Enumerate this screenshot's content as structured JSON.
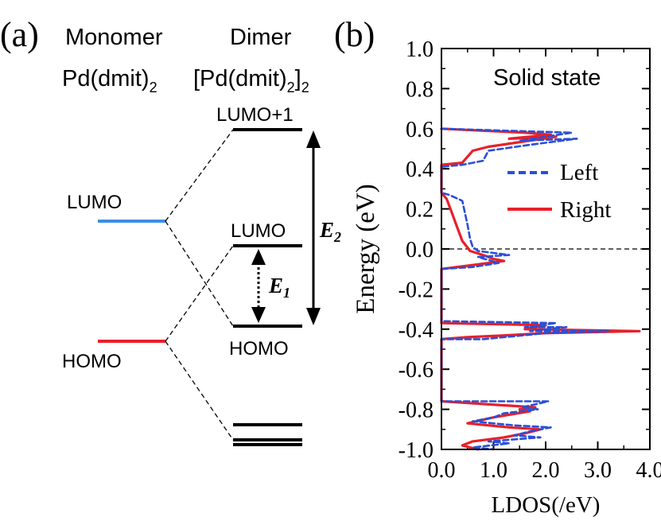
{
  "panel_a": {
    "label": "(a)",
    "monomer": {
      "title": "Monomer",
      "formula_base": "Pd(dmit)",
      "formula_sub": "2"
    },
    "dimer": {
      "title": "Dimer",
      "formula_open": "[Pd(dmit)",
      "formula_sub1": "2",
      "formula_close": "]",
      "formula_sub2": "2"
    },
    "levels": {
      "monomer_lumo": "LUMO",
      "monomer_homo": "HOMO",
      "dimer_lumo_plus_1": "LUMO+1",
      "dimer_lumo": "LUMO",
      "dimer_homo": "HOMO"
    },
    "gaps": {
      "e1_main": "E",
      "e1_sub": "1",
      "e2_main": "E",
      "e2_sub": "2"
    },
    "colors": {
      "lumo": "#3a8ee6",
      "homo": "#e8202a",
      "dimer": "#000000"
    }
  },
  "chart_data": {
    "panel_label": "(b)",
    "type": "line",
    "title": "Solid state",
    "xlabel": "LDOS(/eV)",
    "ylabel": "Energy (eV)",
    "xlim": [
      0.0,
      4.0
    ],
    "ylim": [
      -1.0,
      1.0
    ],
    "xticks": [
      "0.0",
      "1.0",
      "2.0",
      "3.0",
      "4.0"
    ],
    "yticks": [
      "-1.0",
      "-0.8",
      "-0.6",
      "-0.4",
      "-0.2",
      "0.0",
      "0.2",
      "0.4",
      "0.6",
      "0.8",
      "1.0"
    ],
    "fermi_level": 0.0,
    "legend": {
      "position": "upper-right"
    },
    "series": [
      {
        "name": "Left",
        "color": "#2a4fd6",
        "dash": "dashed",
        "points": [
          [
            0.0,
            0.6
          ],
          [
            2.5,
            0.58
          ],
          [
            1.5,
            0.54
          ],
          [
            2.6,
            0.55
          ],
          [
            1.7,
            0.52
          ],
          [
            0.9,
            0.49
          ],
          [
            0.8,
            0.44
          ],
          [
            0.4,
            0.42
          ],
          [
            0.0,
            0.41
          ],
          [
            0.0,
            0.28
          ],
          [
            0.15,
            0.27
          ],
          [
            0.4,
            0.24
          ],
          [
            0.45,
            0.18
          ],
          [
            0.5,
            0.12
          ],
          [
            0.55,
            0.05
          ],
          [
            0.6,
            0.01
          ],
          [
            0.7,
            -0.01
          ],
          [
            1.3,
            -0.03
          ],
          [
            0.7,
            -0.04
          ],
          [
            1.1,
            -0.07
          ],
          [
            0.6,
            -0.09
          ],
          [
            0.0,
            -0.1
          ],
          [
            0.0,
            -0.36
          ],
          [
            2.2,
            -0.37
          ],
          [
            1.6,
            -0.39
          ],
          [
            2.4,
            -0.39
          ],
          [
            1.7,
            -0.41
          ],
          [
            3.2,
            -0.41
          ],
          [
            2.0,
            -0.42
          ],
          [
            1.6,
            -0.43
          ],
          [
            0.8,
            -0.45
          ],
          [
            0.0,
            -0.45
          ],
          [
            0.0,
            -0.76
          ],
          [
            2.05,
            -0.76
          ],
          [
            1.55,
            -0.79
          ],
          [
            1.85,
            -0.8
          ],
          [
            1.2,
            -0.82
          ],
          [
            1.0,
            -0.84
          ],
          [
            0.6,
            -0.86
          ],
          [
            1.4,
            -0.88
          ],
          [
            2.1,
            -0.89
          ],
          [
            1.7,
            -0.91
          ],
          [
            1.4,
            -0.93
          ],
          [
            1.9,
            -0.94
          ],
          [
            0.9,
            -0.96
          ],
          [
            1.3,
            -0.97
          ],
          [
            0.6,
            -0.99
          ],
          [
            1.0,
            -1.0
          ]
        ]
      },
      {
        "name": "Right",
        "color": "#e8202a",
        "dash": "solid",
        "points": [
          [
            0.0,
            0.6
          ],
          [
            1.6,
            0.58
          ],
          [
            2.1,
            0.57
          ],
          [
            1.3,
            0.55
          ],
          [
            2.2,
            0.56
          ],
          [
            0.9,
            0.51
          ],
          [
            0.6,
            0.49
          ],
          [
            0.4,
            0.43
          ],
          [
            0.0,
            0.42
          ],
          [
            0.0,
            0.28
          ],
          [
            0.1,
            0.25
          ],
          [
            0.2,
            0.18
          ],
          [
            0.3,
            0.11
          ],
          [
            0.4,
            0.04
          ],
          [
            0.55,
            -0.01
          ],
          [
            0.8,
            -0.03
          ],
          [
            1.0,
            -0.05
          ],
          [
            1.2,
            -0.06
          ],
          [
            0.6,
            -0.08
          ],
          [
            0.0,
            -0.1
          ],
          [
            0.0,
            -0.37
          ],
          [
            2.0,
            -0.38
          ],
          [
            1.6,
            -0.4
          ],
          [
            3.8,
            -0.41
          ],
          [
            2.0,
            -0.42
          ],
          [
            1.3,
            -0.43
          ],
          [
            0.5,
            -0.44
          ],
          [
            0.0,
            -0.45
          ],
          [
            0.0,
            -0.76
          ],
          [
            1.8,
            -0.79
          ],
          [
            1.5,
            -0.8
          ],
          [
            1.7,
            -0.81
          ],
          [
            1.0,
            -0.84
          ],
          [
            0.5,
            -0.87
          ],
          [
            1.3,
            -0.89
          ],
          [
            1.9,
            -0.9
          ],
          [
            1.6,
            -0.92
          ],
          [
            1.2,
            -0.94
          ],
          [
            0.6,
            -0.96
          ],
          [
            0.4,
            -0.98
          ],
          [
            0.7,
            -1.0
          ]
        ]
      }
    ]
  }
}
